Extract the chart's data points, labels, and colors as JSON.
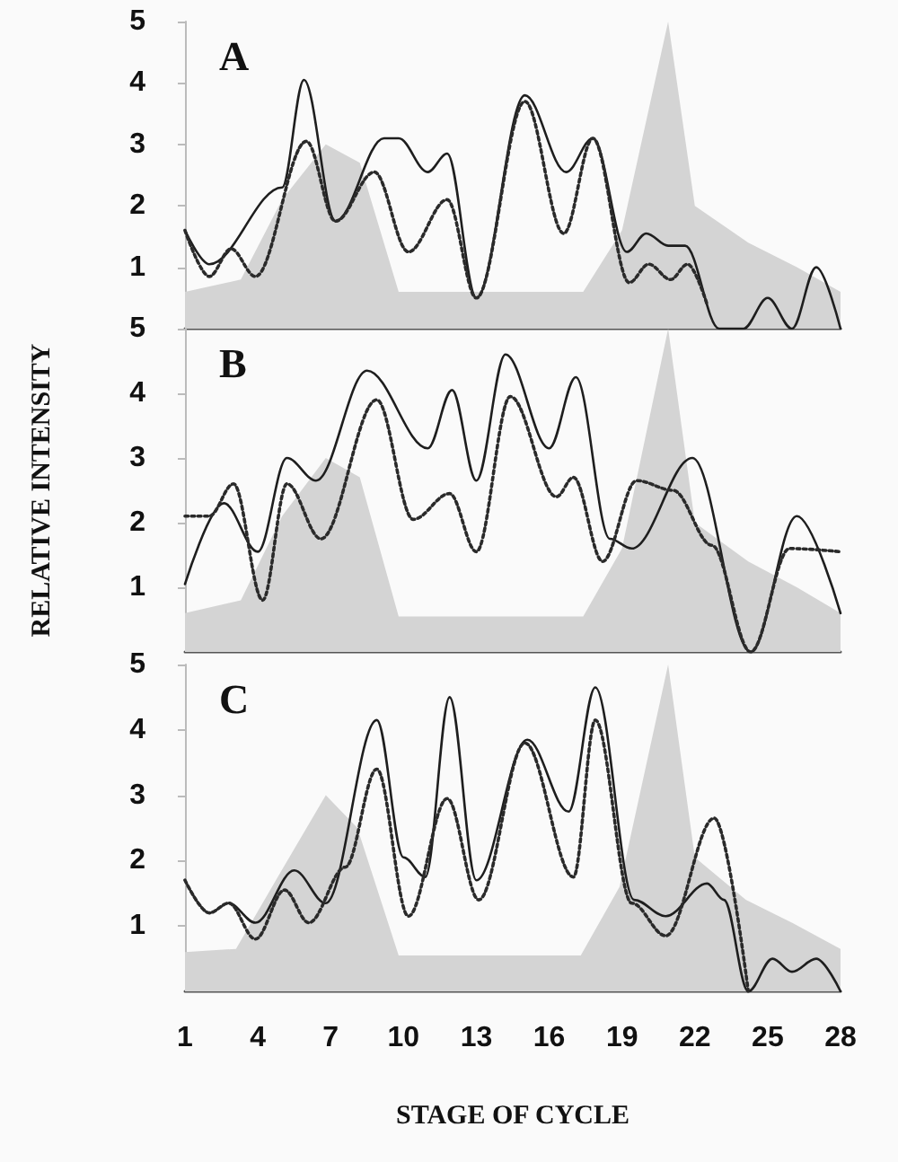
{
  "chart_data": [
    {
      "type": "line",
      "annotations": [
        "A"
      ],
      "xlim": [
        1,
        28
      ],
      "xticks": [
        1,
        4,
        7,
        10,
        13,
        16,
        19,
        22,
        25,
        28
      ],
      "ylim": [
        0,
        5
      ],
      "yticks": [
        1,
        2,
        3,
        4,
        5
      ],
      "tick_labels": "y",
      "grid": false,
      "series": [
        {
          "type": "area",
          "color": "#d4d4d4",
          "x": [
            1,
            3.3,
            5,
            6.8,
            8.2,
            9.8,
            17.4,
            19,
            20.9,
            22,
            24.2,
            26.2,
            28
          ],
          "values": [
            0.6,
            0.8,
            2.1,
            3,
            2.7,
            0.6,
            0.6,
            1.6,
            5,
            2,
            1.4,
            1,
            0.6
          ]
        },
        {
          "color": "#1e1e1e",
          "line_style": "solid",
          "x": [
            1,
            2,
            5,
            5.9,
            7.2,
            9.2,
            9.8,
            11,
            11.8,
            13,
            15,
            16.7,
            17.8,
            19.2,
            20,
            20.9,
            21.6,
            23,
            24,
            25,
            26,
            27,
            28
          ],
          "values": [
            1.6,
            1.05,
            2.3,
            4.05,
            1.75,
            3.1,
            3.1,
            2.55,
            2.85,
            0.5,
            3.8,
            2.55,
            3.1,
            1.25,
            1.55,
            1.35,
            1.35,
            0,
            0,
            0.5,
            0,
            1,
            0
          ]
        },
        {
          "color": "#2a2a2a",
          "line_style": "dotted",
          "x": [
            1,
            2,
            2.9,
            3.9,
            6,
            7.2,
            8.8,
            10.2,
            11.8,
            13,
            15,
            16.6,
            17.8,
            19.3,
            20.1,
            21,
            21.7,
            22.5
          ],
          "values": [
            1.6,
            0.85,
            1.3,
            0.85,
            3.05,
            1.75,
            2.55,
            1.25,
            2.1,
            0.5,
            3.7,
            1.55,
            3.1,
            0.75,
            1.05,
            0.8,
            1.05,
            0.4
          ]
        }
      ]
    },
    {
      "type": "line",
      "annotations": [
        "B"
      ],
      "ylabel": "RELATIVE INTENSITY",
      "xlim": [
        1,
        28
      ],
      "xticks": [
        1,
        4,
        7,
        10,
        13,
        16,
        19,
        22,
        25,
        28
      ],
      "ylim": [
        0,
        5
      ],
      "yticks": [
        1,
        2,
        3,
        4,
        5
      ],
      "tick_labels": "y",
      "grid": false,
      "series": [
        {
          "type": "area",
          "color": "#d4d4d4",
          "x": [
            1,
            3.3,
            5,
            6.8,
            8.2,
            9.8,
            17.4,
            19,
            20.9,
            22,
            24.2,
            26.2,
            28
          ],
          "values": [
            0.6,
            0.8,
            2.1,
            3,
            2.7,
            0.55,
            0.55,
            1.6,
            5,
            2,
            1.4,
            1,
            0.6
          ]
        },
        {
          "color": "#1e1e1e",
          "line_style": "solid",
          "x": [
            1,
            2.6,
            4,
            5.2,
            6.4,
            8.5,
            11,
            12,
            13,
            14.2,
            16,
            17.1,
            18.5,
            19.4,
            21.9,
            24.3,
            26.2,
            28
          ],
          "values": [
            1.05,
            2.3,
            1.55,
            3,
            2.65,
            4.35,
            3.15,
            4.05,
            2.65,
            4.6,
            3.15,
            4.25,
            1.75,
            1.6,
            3,
            0,
            2.1,
            0.6
          ]
        },
        {
          "color": "#2a2a2a",
          "line_style": "dotted",
          "x": [
            1,
            2,
            3,
            4.2,
            5.2,
            6.6,
            8.9,
            10.4,
            11.9,
            13,
            14.4,
            16.3,
            17,
            18.2,
            19.6,
            21.1,
            22.7,
            24.3,
            25.9,
            28
          ],
          "values": [
            2.1,
            2.1,
            2.6,
            0.8,
            2.6,
            1.75,
            3.9,
            2.05,
            2.45,
            1.55,
            3.95,
            2.4,
            2.7,
            1.4,
            2.65,
            2.5,
            1.65,
            0,
            1.6,
            1.55
          ]
        }
      ]
    },
    {
      "type": "line",
      "annotations": [
        "C"
      ],
      "xlabel": "STAGE OF CYCLE",
      "xlim": [
        1,
        28
      ],
      "xticks": [
        1,
        4,
        7,
        10,
        13,
        16,
        19,
        22,
        25,
        28
      ],
      "ylim": [
        0,
        5
      ],
      "yticks": [
        1,
        2,
        3,
        4,
        5
      ],
      "grid": false,
      "series": [
        {
          "type": "area",
          "color": "#d4d4d4",
          "x": [
            1,
            3.1,
            4.9,
            6.8,
            8.1,
            9.8,
            17.3,
            18.9,
            20.9,
            22,
            24.1,
            26,
            28
          ],
          "values": [
            0.6,
            0.65,
            1.8,
            3,
            2.5,
            0.55,
            0.55,
            1.6,
            5,
            2.05,
            1.4,
            1.05,
            0.65
          ]
        },
        {
          "color": "#1e1e1e",
          "line_style": "solid",
          "x": [
            1,
            2,
            2.8,
            3.9,
            5.5,
            6.8,
            8.9,
            10,
            10.9,
            11.9,
            13,
            15.1,
            16.8,
            17.9,
            19.5,
            20.8,
            22.5,
            23.2,
            24.2,
            25.2,
            26,
            27,
            28
          ],
          "values": [
            1.7,
            1.2,
            1.35,
            1.05,
            1.85,
            1.35,
            4.15,
            2.05,
            1.75,
            4.5,
            1.7,
            3.85,
            2.75,
            4.65,
            1.4,
            1.15,
            1.65,
            1.4,
            0,
            0.5,
            0.3,
            0.5,
            0
          ]
        },
        {
          "color": "#2a2a2a",
          "line_style": "dotted",
          "x": [
            1,
            2,
            2.8,
            3.9,
            5.1,
            6.1,
            7.6,
            8.9,
            10.2,
            11.8,
            13.1,
            15,
            17,
            17.9,
            19.4,
            20.8,
            22.8,
            24.2
          ],
          "values": [
            1.7,
            1.2,
            1.35,
            0.8,
            1.55,
            1.05,
            1.9,
            3.4,
            1.15,
            2.95,
            1.4,
            3.8,
            1.75,
            4.15,
            1.35,
            0.85,
            2.65,
            0
          ]
        }
      ]
    }
  ]
}
